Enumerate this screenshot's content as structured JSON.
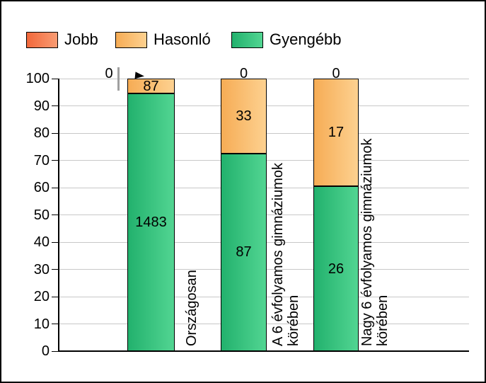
{
  "chart_data": {
    "type": "bar",
    "subtype": "stacked-100-percent-column",
    "title": "",
    "categories": [
      "Országosan",
      "A 6 évfolyamos gimnáziumok\nkörében",
      "Nagy 6 évfolyamos gimnáziumok\nkörében"
    ],
    "series": [
      {
        "name": "Jobb",
        "values": [
          0,
          0,
          0
        ],
        "color_left": "#f2683b",
        "color_right": "#f99c73"
      },
      {
        "name": "Hasonló",
        "values": [
          87,
          33,
          17
        ],
        "color_left": "#f6ac55",
        "color_right": "#fdd190"
      },
      {
        "name": "Gyengébb",
        "values": [
          1483,
          87,
          26
        ],
        "color_left": "#22b16d",
        "color_right": "#52d592"
      }
    ],
    "stack_order_bottom_to_top": [
      "Gyengébb",
      "Hasonló",
      "Jobb"
    ],
    "value_labels_shown": true,
    "zero_label_layout": [
      "leader-left",
      "above-bar",
      "above-bar"
    ],
    "ylim": [
      0,
      100
    ],
    "yticks": [
      0,
      10,
      20,
      30,
      40,
      50,
      60,
      70,
      80,
      90,
      100
    ],
    "xlabel": "",
    "ylabel": "",
    "grid": "horizontal",
    "legend_position": "top-left",
    "colors": {
      "gridline": "#c8c8c8",
      "axis": "#000000",
      "leader_line": "#a0a0a0",
      "label_text": "#000000",
      "background": "#ffffff",
      "border": "#000000"
    }
  }
}
